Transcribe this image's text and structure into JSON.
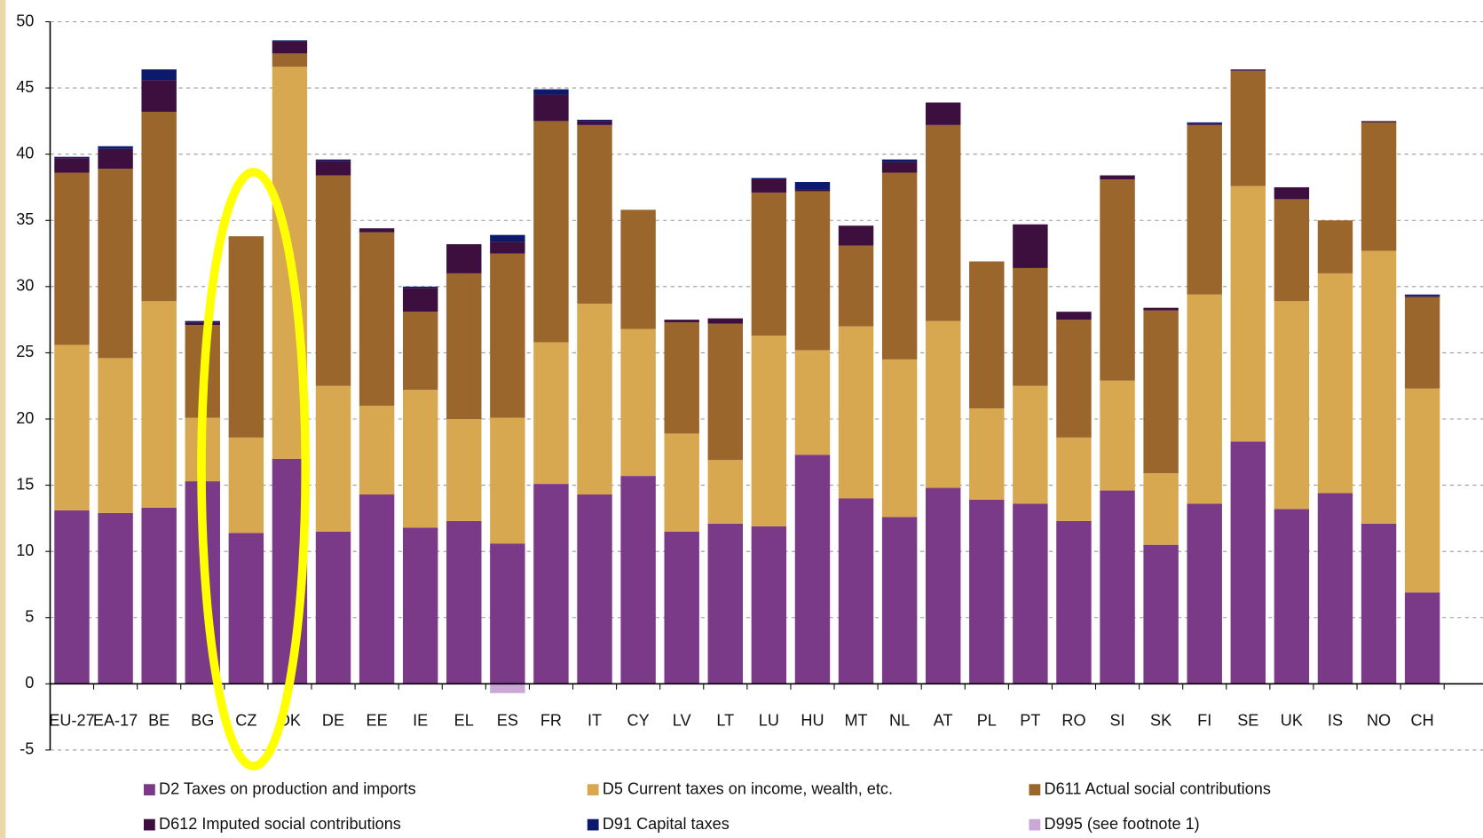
{
  "chart_data": {
    "type": "stacked_bar",
    "categories": [
      "EU-27",
      "EA-17",
      "BE",
      "BG",
      "CZ",
      "DK",
      "DE",
      "EE",
      "IE",
      "EL",
      "ES",
      "FR",
      "IT",
      "CY",
      "LV",
      "LT",
      "LU",
      "HU",
      "MT",
      "NL",
      "AT",
      "PL",
      "PT",
      "RO",
      "SI",
      "SK",
      "FI",
      "SE",
      "UK",
      "IS",
      "NO",
      "CH"
    ],
    "series": [
      {
        "name": "D2 Taxes on production and imports",
        "color": "#7b3a87",
        "values": [
          13.1,
          12.9,
          13.3,
          15.3,
          11.4,
          17.0,
          11.5,
          14.3,
          11.8,
          12.3,
          10.6,
          15.1,
          14.3,
          15.7,
          11.5,
          12.1,
          11.9,
          17.3,
          14.0,
          12.6,
          14.8,
          13.9,
          13.6,
          12.3,
          14.6,
          10.5,
          13.6,
          18.3,
          13.2,
          14.4,
          12.1,
          6.9
        ]
      },
      {
        "name": "D5 Current taxes on income, wealth, etc.",
        "color": "#d7a84f",
        "values": [
          12.5,
          11.7,
          15.6,
          4.8,
          7.2,
          29.6,
          11.0,
          6.7,
          10.4,
          7.7,
          9.5,
          10.7,
          14.4,
          11.1,
          7.4,
          4.8,
          14.4,
          7.9,
          13.0,
          11.9,
          12.6,
          6.9,
          8.9,
          6.3,
          8.3,
          5.4,
          15.8,
          19.3,
          15.7,
          16.6,
          20.6,
          15.4
        ]
      },
      {
        "name": "D611 Actual social contributions",
        "color": "#9b662b",
        "values": [
          13.0,
          14.3,
          14.3,
          7.0,
          15.2,
          1.0,
          15.9,
          13.1,
          5.9,
          11.0,
          12.4,
          16.7,
          13.5,
          9.0,
          8.4,
          10.3,
          10.8,
          12.0,
          6.1,
          14.1,
          14.8,
          11.1,
          8.9,
          8.9,
          15.2,
          12.3,
          12.8,
          8.7,
          7.7,
          4.0,
          9.7,
          6.9
        ]
      },
      {
        "name": "D612 Imputed social contributions",
        "color": "#3d0f3e",
        "values": [
          1.1,
          1.5,
          2.4,
          0.2,
          0,
          0.9,
          1.1,
          0.3,
          1.8,
          2.2,
          0.9,
          2.0,
          0.3,
          0,
          0.2,
          0.4,
          1.0,
          0.1,
          1.5,
          0.8,
          1.7,
          0,
          3.3,
          0.6,
          0.3,
          0.2,
          0.1,
          0.1,
          0.9,
          0,
          0.1,
          0.1
        ]
      },
      {
        "name": "D91 Capital taxes",
        "color": "#0d1a6b",
        "values": [
          0.1,
          0.2,
          0.8,
          0.1,
          0,
          0.1,
          0.1,
          0,
          0.1,
          0,
          0.5,
          0.4,
          0.1,
          0,
          0,
          0,
          0.1,
          0.6,
          0,
          0.2,
          0,
          0,
          0,
          0,
          0,
          0,
          0.1,
          0,
          0,
          0,
          0,
          0.1
        ]
      },
      {
        "name": "D995 (see footnote 1)",
        "color": "#c9a8d6",
        "values": [
          0,
          0,
          0,
          0,
          0,
          0,
          0,
          0,
          0,
          0,
          -0.7,
          0,
          0,
          0,
          0,
          0,
          0,
          0,
          0,
          0,
          0,
          0,
          0,
          0,
          0,
          0,
          0,
          0,
          0,
          0,
          0,
          0
        ]
      }
    ],
    "ylim": [
      -5,
      50
    ],
    "yticks": [
      -5,
      0,
      5,
      10,
      15,
      20,
      25,
      30,
      35,
      40,
      45,
      50
    ],
    "grid": true
  }
}
